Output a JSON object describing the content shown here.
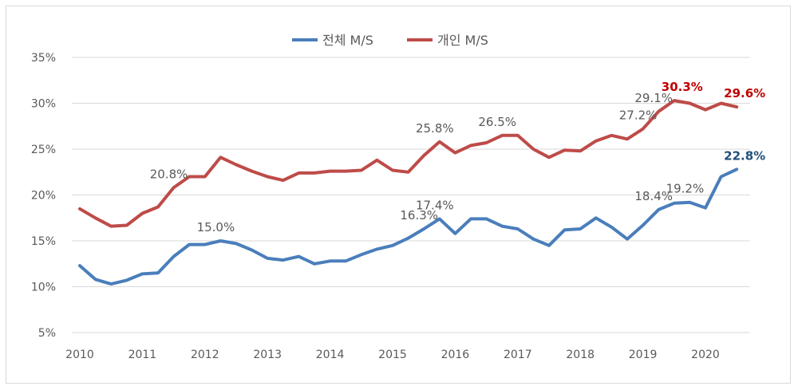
{
  "chart_data": {
    "type": "line",
    "title": "",
    "xlabel": "",
    "ylabel": "",
    "ylim": [
      5,
      35
    ],
    "yticks": [
      "5%",
      "10%",
      "15%",
      "20%",
      "25%",
      "30%",
      "35%"
    ],
    "ytick_values": [
      5,
      10,
      15,
      20,
      25,
      30,
      35
    ],
    "xticks": [
      "2010",
      "2011",
      "2012",
      "2013",
      "2014",
      "2015",
      "2016",
      "2017",
      "2018",
      "2019",
      "2020"
    ],
    "x": [
      "2010Q1",
      "2010Q2",
      "2010Q3",
      "2010Q4",
      "2011Q1",
      "2011Q2",
      "2011Q3",
      "2011Q4",
      "2012Q1",
      "2012Q2",
      "2012Q3",
      "2012Q4",
      "2013Q1",
      "2013Q2",
      "2013Q3",
      "2013Q4",
      "2014Q1",
      "2014Q2",
      "2014Q3",
      "2014Q4",
      "2015Q1",
      "2015Q2",
      "2015Q3",
      "2015Q4",
      "2016Q1",
      "2016Q2",
      "2016Q3",
      "2016Q4",
      "2017Q1",
      "2017Q2",
      "2017Q3",
      "2017Q4",
      "2018Q1",
      "2018Q2",
      "2018Q3",
      "2018Q4",
      "2019Q1",
      "2019Q2",
      "2019Q3",
      "2019Q4",
      "2020Q1",
      "2020Q2",
      "2020Q3"
    ],
    "grid": "horizontal",
    "legend_position": "top",
    "series": [
      {
        "name": "전체 M/S",
        "color": "#4a7ebb",
        "values": [
          12.3,
          10.8,
          10.3,
          10.7,
          11.4,
          11.5,
          13.3,
          14.6,
          14.6,
          15.0,
          14.7,
          14.0,
          13.1,
          12.9,
          13.3,
          12.5,
          12.8,
          12.8,
          13.5,
          14.1,
          14.5,
          15.3,
          16.3,
          17.4,
          15.8,
          17.4,
          17.4,
          16.6,
          16.3,
          15.2,
          14.5,
          16.2,
          16.3,
          17.5,
          16.5,
          15.2,
          16.7,
          18.4,
          19.1,
          19.2,
          18.6,
          22.0,
          22.8
        ],
        "labels": [
          {
            "index": 9,
            "text": "15.0%",
            "color": "#595959"
          },
          {
            "index": 22,
            "text": "16.3%",
            "color": "#595959"
          },
          {
            "index": 23,
            "text": "17.4%",
            "color": "#595959"
          },
          {
            "index": 37,
            "text": "18.4%",
            "color": "#595959"
          },
          {
            "index": 39,
            "text": "19.2%",
            "color": "#595959"
          },
          {
            "index": 42,
            "text": "22.8%",
            "color": "#1f4e79",
            "bold": true
          }
        ]
      },
      {
        "name": "개인 M/S",
        "color": "#be4b48",
        "values": [
          18.5,
          17.5,
          16.6,
          16.7,
          18.0,
          18.7,
          20.8,
          22.0,
          22.0,
          24.1,
          23.3,
          22.6,
          22.0,
          21.6,
          22.4,
          22.4,
          22.6,
          22.6,
          22.7,
          23.8,
          22.7,
          22.5,
          24.3,
          25.8,
          24.6,
          25.4,
          25.7,
          26.5,
          26.5,
          25.0,
          24.1,
          24.9,
          24.8,
          25.9,
          26.5,
          26.1,
          27.2,
          29.1,
          30.3,
          30.0,
          29.3,
          30.0,
          29.6
        ],
        "labels": [
          {
            "index": 6,
            "text": "20.8%",
            "color": "#595959"
          },
          {
            "index": 23,
            "text": "25.8%",
            "color": "#595959"
          },
          {
            "index": 27,
            "text": "26.5%",
            "color": "#595959"
          },
          {
            "index": 36,
            "text": "27.2%",
            "color": "#595959"
          },
          {
            "index": 37,
            "text": "29.1%",
            "color": "#595959"
          },
          {
            "index": 38,
            "text": "30.3%",
            "color": "#c00000",
            "bold": true
          },
          {
            "index": 42,
            "text": "29.6%",
            "color": "#c00000",
            "bold": true
          }
        ]
      }
    ]
  }
}
